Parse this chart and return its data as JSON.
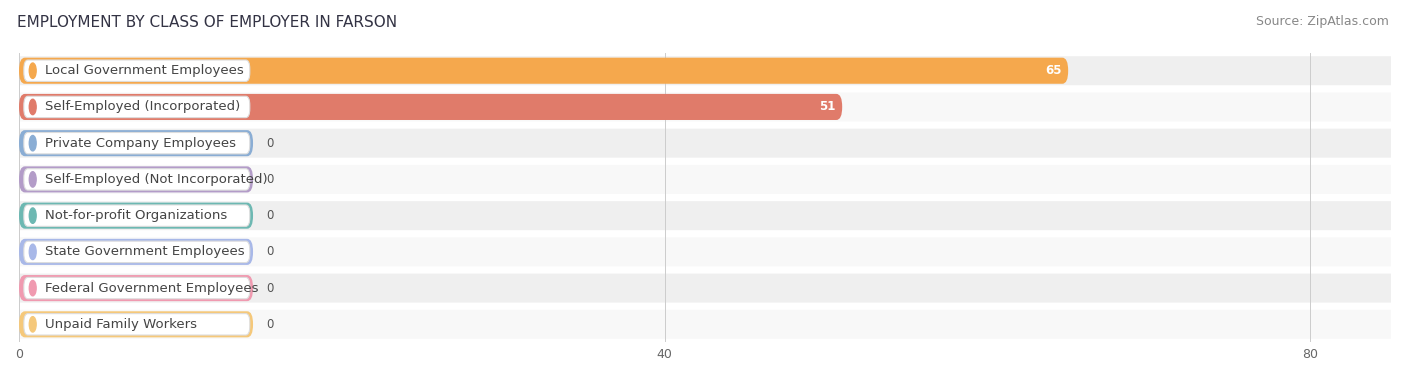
{
  "title": "EMPLOYMENT BY CLASS OF EMPLOYER IN FARSON",
  "source": "Source: ZipAtlas.com",
  "categories": [
    "Local Government Employees",
    "Self-Employed (Incorporated)",
    "Private Company Employees",
    "Self-Employed (Not Incorporated)",
    "Not-for-profit Organizations",
    "State Government Employees",
    "Federal Government Employees",
    "Unpaid Family Workers"
  ],
  "values": [
    65,
    51,
    0,
    0,
    0,
    0,
    0,
    0
  ],
  "bar_colors": [
    "#f5a84d",
    "#e07b6a",
    "#8aadd4",
    "#b39cc8",
    "#6db8b2",
    "#a8b8e8",
    "#f09ab0",
    "#f5c87a"
  ],
  "label_bg_colors": [
    "#ffffff",
    "#ffffff",
    "#ffffff",
    "#ffffff",
    "#ffffff",
    "#ffffff",
    "#ffffff",
    "#ffffff"
  ],
  "row_bg_even": "#efefef",
  "row_bg_odd": "#f8f8f8",
  "xlim_max": 85,
  "xticks": [
    0,
    40,
    80
  ],
  "title_fontsize": 11,
  "source_fontsize": 9,
  "label_fontsize": 9.5,
  "value_fontsize": 8.5
}
